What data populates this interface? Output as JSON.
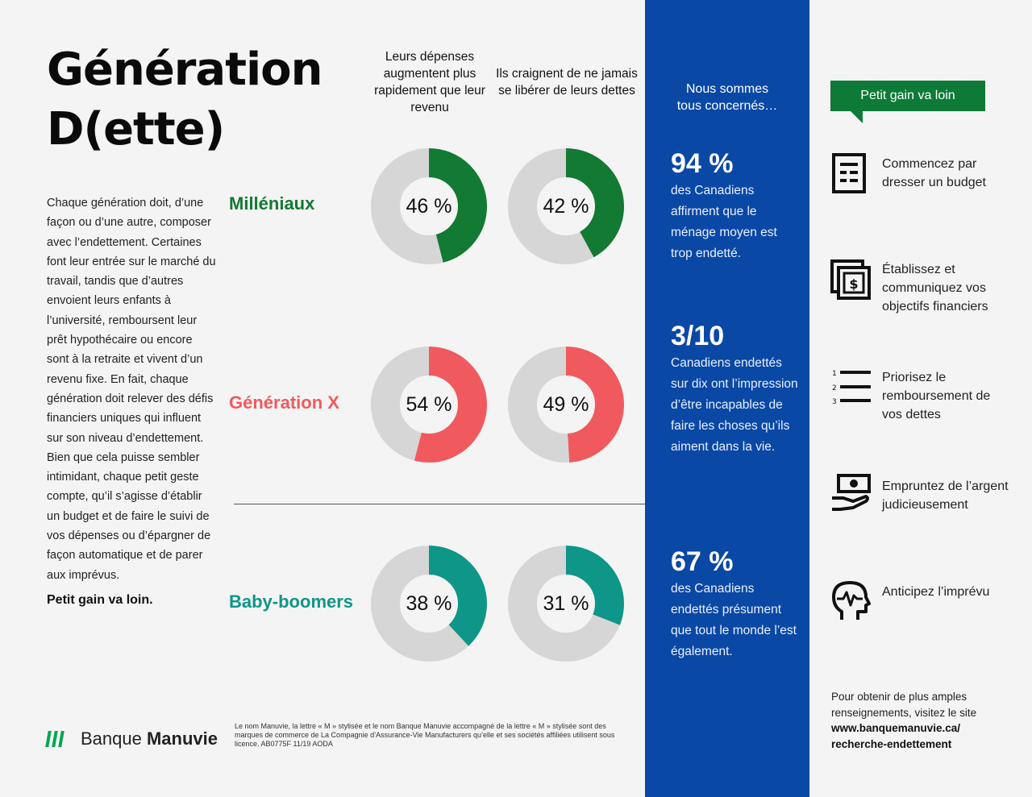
{
  "title": {
    "line1": "Génération",
    "line2": "D(ette)"
  },
  "intro": "Chaque génération doit, d’une façon ou d’une autre, composer avec l’endettement. Certaines font leur entrée sur le marché du travail, tandis que d’autres envoient leurs enfants à l’université, remboursent leur prêt hypothécaire ou encore sont à la retraite et vivent d’un revenu fixe. En fait, chaque génération doit relever des défis financiers uniques qui influent sur son niveau d’endettement. Bien que cela puisse sembler intimidant, chaque petit geste compte, qu’il s’agisse d’établir un budget et de faire le suivi de vos dépenses ou d’épargner de façon automatique et de parer aux imprévus.",
  "tagline": "Petit gain va loin.",
  "chart_data": {
    "type": "pie",
    "columns": [
      "Leurs dépenses augmentent plus rapidement que leur revenu",
      "Ils craignent de ne jamais se libérer de leurs dettes"
    ],
    "series": [
      {
        "name": "Milléniaux",
        "values": [
          46,
          42
        ],
        "labels": [
          "46 %",
          "42 %"
        ],
        "color": "#127a32"
      },
      {
        "name": "Génération X",
        "values": [
          54,
          49
        ],
        "labels": [
          "54 %",
          "49 %"
        ],
        "color": "#f05a5e"
      },
      {
        "name": "Baby-boomers",
        "values": [
          38,
          31
        ],
        "labels": [
          "38 %",
          "31 %"
        ],
        "color": "#0e9688"
      }
    ],
    "unit": "%",
    "remainder_color": "#d6d6d6"
  },
  "brand": {
    "prefix": "Banque",
    "name": "Manuvie",
    "logo_color": "#00a651"
  },
  "legal": "Le nom Manuvie, la lettre « M » stylisée et le nom Banque Manuvie accompagné de la lettre « M » stylisée sont des marques de commerce de La Compagnie d’Assurance-Vie Manufacturers qu’elle et ses sociétés affiliées utilisent sous licence.     AB0775F  11/19  AODA",
  "panel": {
    "heading": "Nous sommes tous concernés…",
    "background": "#0a48a6",
    "stats": [
      {
        "value": "94 %",
        "text": "des Canadiens affirment que le ménage moyen est trop endetté."
      },
      {
        "value": "3/10",
        "text": "Canadiens endettés sur dix ont l’impression d’être incapables de faire les choses qu’ils aiment dans la vie."
      },
      {
        "value": "67 %",
        "text": "des Canadiens endettés présument que tout le monde l’est également."
      }
    ]
  },
  "tips": {
    "heading": "Petit gain va loin",
    "accent": "#0e7a37",
    "items": [
      {
        "icon": "document-icon",
        "text": "Commencez par dresser un budget"
      },
      {
        "icon": "money-icon",
        "text": "Établissez et communiquez vos objectifs financiers"
      },
      {
        "icon": "numbered-list-icon",
        "text": "Priorisez le remboursement de vos dettes",
        "numbers": [
          "1",
          "2",
          "3"
        ]
      },
      {
        "icon": "hand-money-icon",
        "text": "Empruntez de l’argent judicieusement"
      },
      {
        "icon": "head-heartbeat-icon",
        "text": "Anticipez l’imprévu"
      }
    ]
  },
  "footer": {
    "line1": "Pour obtenir de plus amples",
    "line2": "renseignements, visitez le site",
    "url_line1": "www.banquemanuvie.ca/",
    "url_line2": "recherche-endettement"
  }
}
